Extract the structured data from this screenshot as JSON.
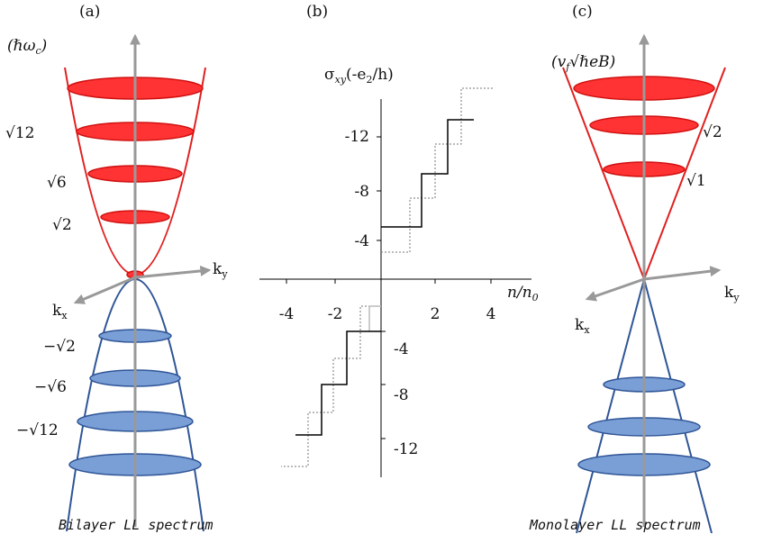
{
  "panel_a": {
    "tag": "(a)",
    "unit": {
      "main": "(ℏω",
      "sub": "c",
      "close": ")"
    },
    "levels_pos": [
      "√12",
      "√6",
      "√2"
    ],
    "levels_neg": [
      "−√2",
      "−√6",
      "−√12"
    ],
    "ky": {
      "main": "k",
      "sub": "y"
    },
    "kx": {
      "main": "k",
      "sub": "x"
    },
    "caption": "Bilayer LL spectrum"
  },
  "panel_b": {
    "tag": "(b)",
    "ylabel": {
      "main": "σ",
      "sub": "xy",
      "rest": "(-e",
      "sub2": "2",
      "end": "/h)"
    },
    "yticks_upper": [
      "-12",
      "-8",
      "-4"
    ],
    "yticks_lower": [
      "-4",
      "-8",
      "-12"
    ],
    "xticks": [
      "-4",
      "-2",
      "2",
      "4"
    ],
    "xlabel": {
      "n": "n/n",
      "sub": "0"
    }
  },
  "panel_c": {
    "tag": "(c)",
    "unit": {
      "main": "(v",
      "sub": "f",
      "rest": "√ℏeB)"
    },
    "levels_pos": [
      "√2",
      "√1"
    ],
    "ky": {
      "main": "k",
      "sub": "y"
    },
    "kx": {
      "main": "k",
      "sub": "x"
    },
    "caption": "Monolayer LL spectrum"
  }
}
